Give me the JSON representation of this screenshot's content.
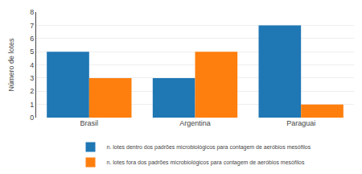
{
  "chart_data": {
    "type": "bar",
    "categories": [
      "Brasil",
      "Argentina",
      "Paraguai"
    ],
    "series": [
      {
        "name": "n. lotes dentro dos padrões microbiológicos para contagem de aeróbios mesófilos",
        "values": [
          5,
          3,
          7
        ]
      },
      {
        "name": "n. lotes fora dos padrões microbiológicos para contagem de aeróbios mesófilos",
        "values": [
          3,
          5,
          1
        ]
      }
    ],
    "ylabel": "Número de lotes",
    "ylim": [
      0,
      8
    ],
    "yticks": [
      0,
      1,
      2,
      3,
      4,
      5,
      6,
      7,
      8
    ],
    "grid": true,
    "legend": "bottom"
  }
}
